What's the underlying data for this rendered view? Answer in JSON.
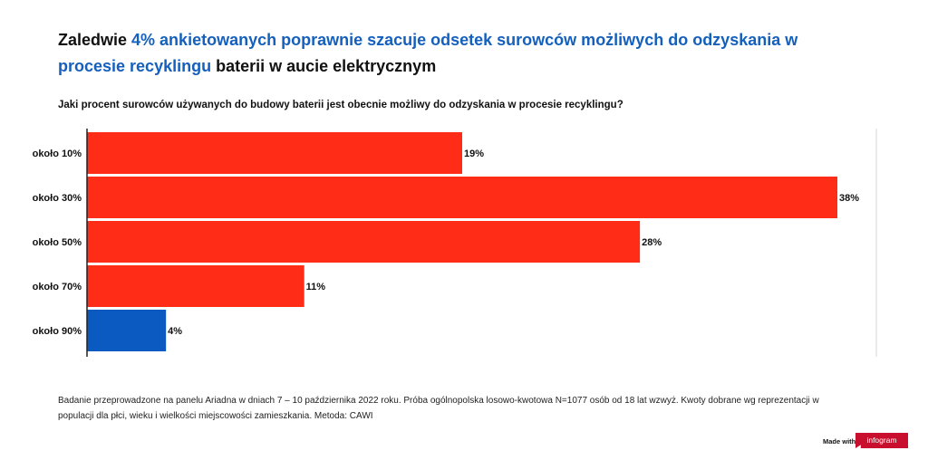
{
  "title": {
    "part1": "Zaledwie ",
    "highlight1": "4% ankietowanych poprawnie szacuje odsetek surowców możliwych do odzyskania w procesie recyklingu",
    "part2": " baterii w aucie elektrycznym"
  },
  "colors": {
    "highlight": "#1560BD",
    "bar_default": "#FF2C17",
    "bar_highlight": "#0B5AC2"
  },
  "chart_data": {
    "type": "bar",
    "orientation": "horizontal",
    "title": "Jaki procent surowców używanych do budowy baterii jest obecnie możliwy do odzyskania w procesie recyklingu?",
    "categories": [
      "około 10%",
      "około 30%",
      "około 50%",
      "około 70%",
      "około 90%"
    ],
    "values": [
      19,
      38,
      28,
      11,
      4
    ],
    "value_labels": [
      "19%",
      "38%",
      "28%",
      "11%",
      "4%"
    ],
    "unit": "%",
    "xlim": [
      0,
      40
    ],
    "highlighted_category": "około 90%",
    "grid": false,
    "legend": "none"
  },
  "footnote": "Badanie przeprowadzone na panelu Ariadna w dniach 7 – 10 października 2022 roku. Próba ogólnopolska losowo-kwotowa N=1077 osób od 18 lat wzwyż. Kwoty dobrane wg reprezentacji w populacji dla płci, wieku i wielkości miejscowości zamieszkania. Metoda: CAWI",
  "branding": {
    "made_with": "Made with",
    "logo": "infogram"
  }
}
